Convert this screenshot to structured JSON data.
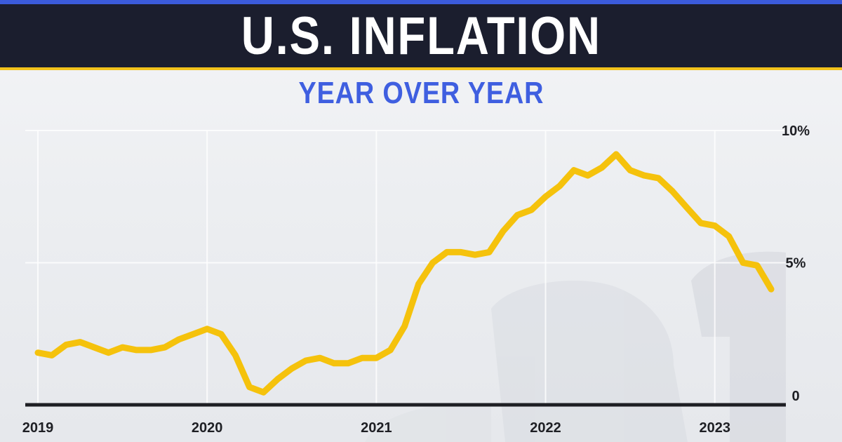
{
  "header": {
    "title": "U.S. INFLATION",
    "subtitle": "YEAR OVER YEAR"
  },
  "colors": {
    "title_bar": "#1b1e2e",
    "accent_stripe": "#3b5bdb",
    "title_underline": "#f2c21b",
    "subtitle": "#3f5fe0",
    "line": "#f5c20c",
    "axis": "#1e1f24"
  },
  "chart_data": {
    "type": "line",
    "title": "U.S. INFLATION",
    "subtitle": "YEAR OVER YEAR",
    "xlabel": "",
    "ylabel": "",
    "x_tick_labels": [
      "2019",
      "2020",
      "2021",
      "2022",
      "2023"
    ],
    "y_tick_labels": [
      "0",
      "5%",
      "10%"
    ],
    "xlim": [
      2019.0,
      2023.42
    ],
    "ylim": [
      0,
      10
    ],
    "grid": true,
    "legend": "none",
    "series": [
      {
        "x": [
          2019.0,
          2019.083,
          2019.167,
          2019.25,
          2019.333,
          2019.417,
          2019.5,
          2019.583,
          2019.667,
          2019.75,
          2019.833,
          2019.917,
          2020.0,
          2020.083,
          2020.167,
          2020.25,
          2020.333,
          2020.417,
          2020.5,
          2020.583,
          2020.667,
          2020.75,
          2020.833,
          2020.917,
          2021.0,
          2021.083,
          2021.167,
          2021.25,
          2021.333,
          2021.417,
          2021.5,
          2021.583,
          2021.667,
          2021.75,
          2021.833,
          2021.917,
          2022.0,
          2022.083,
          2022.167,
          2022.25,
          2022.333,
          2022.417,
          2022.5,
          2022.583,
          2022.667,
          2022.75,
          2022.833,
          2022.917,
          2023.0,
          2023.083,
          2023.167,
          2023.25,
          2023.333
        ],
        "values": [
          1.6,
          1.5,
          1.9,
          2.0,
          1.8,
          1.6,
          1.8,
          1.7,
          1.7,
          1.8,
          2.1,
          2.3,
          2.5,
          2.3,
          1.5,
          0.3,
          0.1,
          0.6,
          1.0,
          1.3,
          1.4,
          1.2,
          1.2,
          1.4,
          1.4,
          1.7,
          2.6,
          4.2,
          5.0,
          5.4,
          5.4,
          5.3,
          5.4,
          6.2,
          6.8,
          7.0,
          7.5,
          7.9,
          8.5,
          8.3,
          8.6,
          9.1,
          8.5,
          8.3,
          8.2,
          7.7,
          7.1,
          6.5,
          6.4,
          6.0,
          5.0,
          4.9,
          4.0
        ]
      }
    ]
  }
}
